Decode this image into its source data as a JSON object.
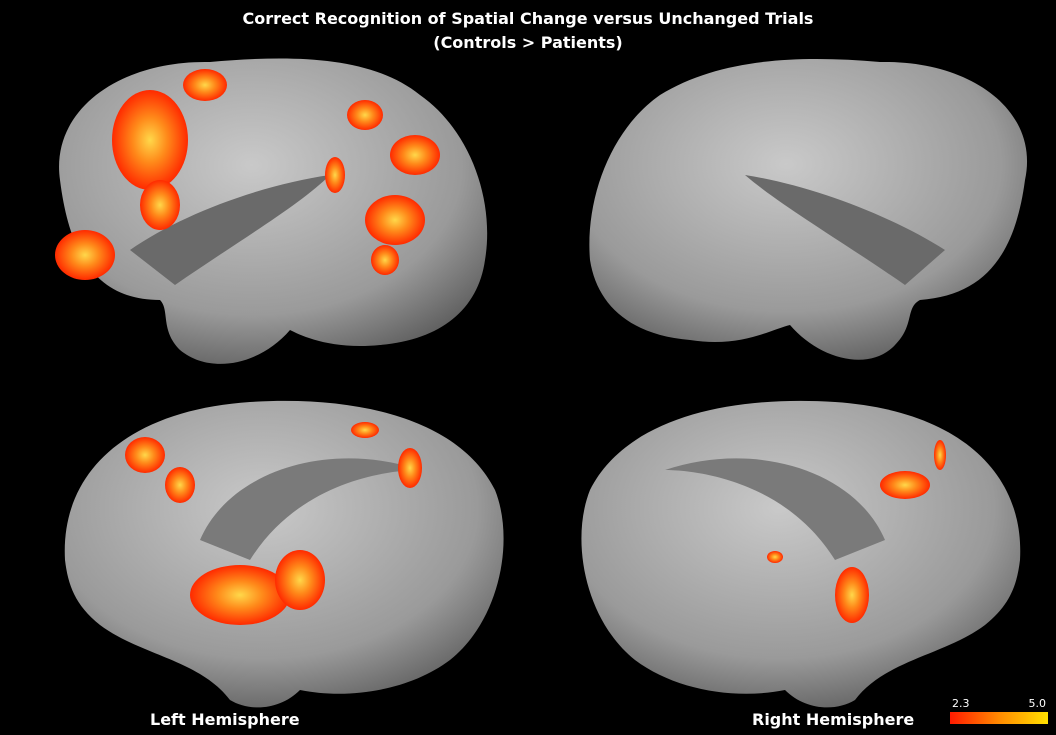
{
  "title": "Correct Recognition of Spatial Change versus Unchanged Trials",
  "subtitle": "(Controls > Patients)",
  "left_label": "Left Hemisphere",
  "right_label": "Right Hemisphere",
  "colorbar": {
    "min_label": "2.3",
    "max_label": "5.0"
  }
}
